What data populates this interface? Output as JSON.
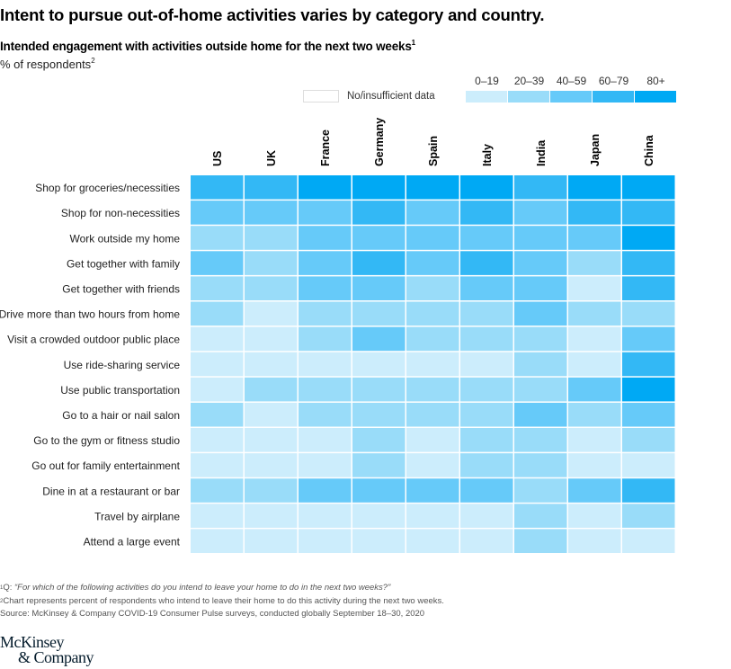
{
  "title": "Intent to pursue out-of-home activities varies by category and country.",
  "subtitle": "Intended engagement with activities outside home for the next two weeks",
  "subtitle_footnote": "1",
  "unit": "% of respondents",
  "unit_footnote": "2",
  "legend": {
    "no_data_label": "No/insufficient data",
    "no_data_color": "#ffffff",
    "bins": [
      {
        "label": "0–19",
        "color": "#ccedfc"
      },
      {
        "label": "20–39",
        "color": "#99dcf9"
      },
      {
        "label": "40–59",
        "color": "#66caf9"
      },
      {
        "label": "60–79",
        "color": "#33b8f5"
      },
      {
        "label": "80+",
        "color": "#00a9f4"
      }
    ]
  },
  "chart_data": {
    "type": "heatmap",
    "title": "Intended engagement with activities outside home for the next two weeks",
    "value_unit": "% of respondents (binned)",
    "bin_ranges": [
      "0–19",
      "20–39",
      "40–59",
      "60–79",
      "80+"
    ],
    "columns": [
      "US",
      "UK",
      "France",
      "Germany",
      "Spain",
      "Italy",
      "India",
      "Japan",
      "China"
    ],
    "rows": [
      "Shop for groceries/necessities",
      "Shop for non-necessities",
      "Work outside my home",
      "Get together with family",
      "Get together with friends",
      "Drive more than two hours from home",
      "Visit a crowded outdoor public place",
      "Use ride-sharing service",
      "Use public transportation",
      "Go to a hair or nail salon",
      "Go to the gym or fitness studio",
      "Go out for family entertainment",
      "Dine in at a restaurant or bar",
      "Travel by airplane",
      "Attend a large event"
    ],
    "values_bin_index": [
      [
        3,
        3,
        4,
        4,
        4,
        4,
        3,
        4,
        4
      ],
      [
        2,
        2,
        2,
        3,
        2,
        3,
        2,
        3,
        3
      ],
      [
        1,
        1,
        2,
        2,
        2,
        2,
        2,
        2,
        4
      ],
      [
        2,
        1,
        2,
        3,
        2,
        3,
        2,
        1,
        3
      ],
      [
        1,
        1,
        2,
        2,
        1,
        2,
        2,
        0,
        3
      ],
      [
        1,
        0,
        1,
        1,
        1,
        1,
        2,
        1,
        1
      ],
      [
        0,
        0,
        1,
        2,
        1,
        1,
        1,
        0,
        2
      ],
      [
        0,
        0,
        0,
        0,
        0,
        0,
        1,
        0,
        3
      ],
      [
        0,
        1,
        1,
        1,
        1,
        1,
        1,
        2,
        4
      ],
      [
        1,
        0,
        1,
        1,
        1,
        1,
        2,
        1,
        2
      ],
      [
        0,
        0,
        0,
        1,
        0,
        1,
        1,
        0,
        1
      ],
      [
        0,
        0,
        0,
        1,
        0,
        1,
        1,
        0,
        0
      ],
      [
        1,
        1,
        2,
        2,
        2,
        2,
        1,
        2,
        3
      ],
      [
        0,
        0,
        0,
        0,
        0,
        0,
        1,
        0,
        1
      ],
      [
        0,
        0,
        0,
        0,
        0,
        0,
        1,
        0,
        0
      ]
    ]
  },
  "footnotes": {
    "note1_marker": "1",
    "note1_prefix": "Q: ",
    "note1_text": "“For which of the following activities do you intend to leave your home to do in the next two weeks?”",
    "note2_marker": "2",
    "note2_text": "Chart represents percent of respondents who intend to leave their home to do this activity during the next two weeks.",
    "source": "Source: McKinsey & Company COVID-19 Consumer Pulse surveys, conducted globally September 18–30, 2020"
  },
  "logo": {
    "line1": "McKinsey",
    "line2": "& Company"
  }
}
